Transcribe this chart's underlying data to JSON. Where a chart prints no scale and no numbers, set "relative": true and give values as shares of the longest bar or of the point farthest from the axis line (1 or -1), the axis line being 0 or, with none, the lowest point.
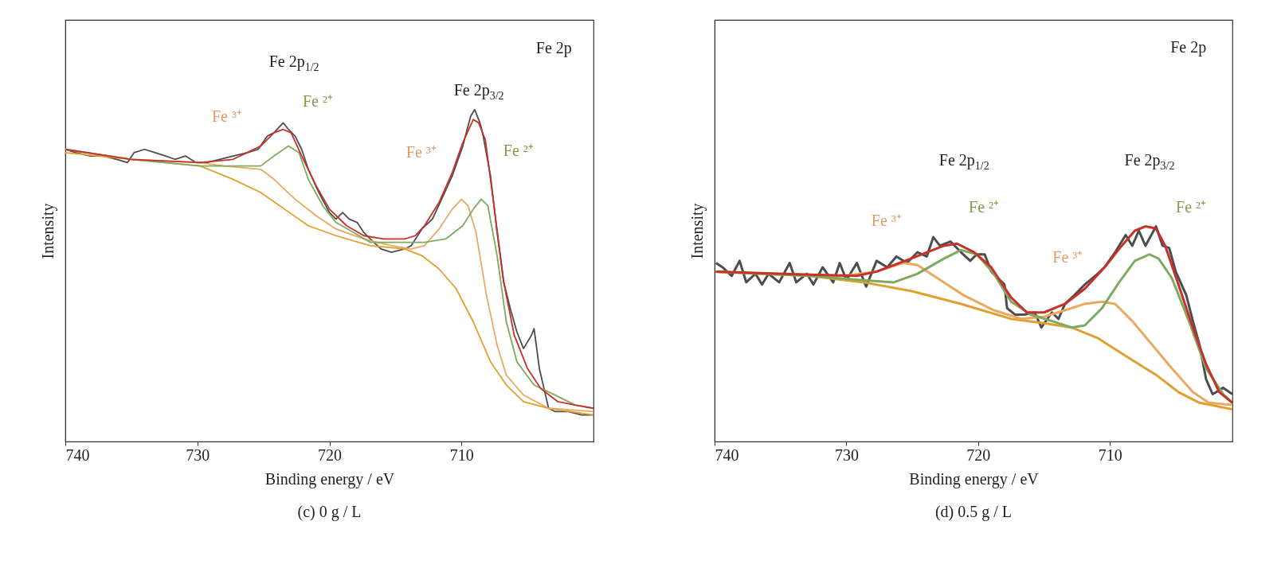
{
  "chart_data": [
    {
      "type": "line",
      "title": "(c) 0 g / L",
      "xlabel": "Binding energy / eV",
      "ylabel": "Intensity",
      "relative": true,
      "xlim": [
        740,
        700
      ],
      "xticks": [
        740,
        730,
        720,
        710
      ],
      "annotations": [
        "Fe 2p",
        "Fe 2p$_{1/2}$",
        "Fe ³⁺",
        "Fe ²⁺",
        "Fe 2p$_{3/2}$",
        "Fe ³⁺",
        "Fe ²⁺"
      ],
      "series": [
        {
          "color": "#4d4d4d",
          "x": [
            740,
            739.2,
            738.1,
            737.1,
            736.1,
            735.3,
            734.8,
            734.0,
            733.2,
            732.4,
            731.7,
            730.9,
            730.1,
            729.3,
            728.3,
            727.3,
            726.2,
            725.4,
            724.7,
            724.2,
            723.5,
            723.1,
            722.6,
            722.1,
            721.6,
            720.8,
            720.0,
            719.5,
            719.0,
            718.5,
            717.9,
            717.4,
            716.9,
            716.1,
            715.3,
            714.3,
            713.8,
            713.0,
            712.2,
            711.5,
            710.7,
            709.9,
            709.3,
            709.0,
            708.6,
            708.4,
            707.8,
            707.3,
            706.8,
            706.3,
            705.8,
            705.3,
            704.7,
            704.5,
            704.1,
            703.4,
            702.9,
            701.9,
            700.9,
            700.0
          ],
          "values": [
            0.88,
            0.87,
            0.86,
            0.86,
            0.85,
            0.84,
            0.87,
            0.88,
            0.87,
            0.86,
            0.85,
            0.86,
            0.84,
            0.84,
            0.85,
            0.86,
            0.87,
            0.88,
            0.92,
            0.93,
            0.96,
            0.94,
            0.92,
            0.88,
            0.82,
            0.75,
            0.69,
            0.67,
            0.69,
            0.67,
            0.66,
            0.63,
            0.61,
            0.58,
            0.57,
            0.58,
            0.59,
            0.64,
            0.67,
            0.73,
            0.8,
            0.89,
            0.98,
            1.0,
            0.96,
            0.93,
            0.8,
            0.63,
            0.48,
            0.4,
            0.33,
            0.28,
            0.32,
            0.34,
            0.22,
            0.1,
            0.09,
            0.09,
            0.08,
            0.08
          ]
        },
        {
          "color": "#e0a030",
          "x": [
            740,
            735.0,
            729.8,
            727.3,
            725.2,
            723.4,
            721.6,
            719.5,
            716.9,
            714.3,
            713.0,
            711.7,
            710.4,
            709.1,
            707.8,
            706.6,
            705.3,
            703.4,
            700.0
          ],
          "values": [
            0.87,
            0.85,
            0.83,
            0.79,
            0.75,
            0.7,
            0.65,
            0.62,
            0.59,
            0.58,
            0.56,
            0.52,
            0.46,
            0.36,
            0.24,
            0.17,
            0.12,
            0.1,
            0.08
          ]
        },
        {
          "color": "#eaa860",
          "x": [
            740,
            735.0,
            729.8,
            728.0,
            725.2,
            724.2,
            722.6,
            721.0,
            719.5,
            717.4,
            715.3,
            713.8,
            712.8,
            711.7,
            710.7,
            710.0,
            709.5,
            708.9,
            708.1,
            707.3,
            706.6,
            705.3,
            703.4,
            700.0
          ],
          "values": [
            0.88,
            0.85,
            0.84,
            0.83,
            0.82,
            0.79,
            0.73,
            0.68,
            0.64,
            0.61,
            0.59,
            0.58,
            0.59,
            0.64,
            0.7,
            0.73,
            0.71,
            0.63,
            0.44,
            0.29,
            0.2,
            0.14,
            0.1,
            0.09
          ]
        },
        {
          "color": "#7daa5c",
          "x": [
            740,
            735.0,
            729.8,
            727.3,
            725.2,
            724.2,
            723.1,
            722.3,
            721.6,
            720.5,
            719.5,
            718.2,
            716.9,
            715.3,
            714.3,
            712.8,
            711.2,
            709.9,
            709.1,
            708.5,
            708.0,
            707.3,
            706.6,
            705.8,
            704.5,
            702.9,
            701.4,
            700.0
          ],
          "values": [
            0.88,
            0.85,
            0.83,
            0.83,
            0.83,
            0.86,
            0.89,
            0.87,
            0.79,
            0.71,
            0.66,
            0.63,
            0.6,
            0.6,
            0.6,
            0.6,
            0.61,
            0.65,
            0.7,
            0.73,
            0.71,
            0.56,
            0.36,
            0.24,
            0.17,
            0.14,
            0.11,
            0.1
          ]
        },
        {
          "color": "#c8302a",
          "x": [
            740,
            735.0,
            729.8,
            727.3,
            725.2,
            724.2,
            723.5,
            722.9,
            722.1,
            721.0,
            720.0,
            718.7,
            717.4,
            715.9,
            714.3,
            713.5,
            712.8,
            711.7,
            710.7,
            709.9,
            709.1,
            708.7,
            708.2,
            707.6,
            706.8,
            706.0,
            705.0,
            704.0,
            702.7,
            701.4,
            700.0
          ],
          "values": [
            0.88,
            0.85,
            0.84,
            0.85,
            0.89,
            0.93,
            0.94,
            0.93,
            0.86,
            0.77,
            0.7,
            0.65,
            0.62,
            0.61,
            0.61,
            0.62,
            0.65,
            0.72,
            0.81,
            0.9,
            0.97,
            0.96,
            0.91,
            0.73,
            0.48,
            0.32,
            0.22,
            0.16,
            0.12,
            0.11,
            0.1
          ]
        }
      ]
    },
    {
      "type": "line",
      "title": "(d) 0.5 g / L",
      "xlabel": "Binding energy / eV",
      "ylabel": "Intensity",
      "relative": true,
      "xlim": [
        740,
        700.7
      ],
      "xticks": [
        740,
        730,
        720,
        710
      ],
      "annotations": [
        "Fe 2p",
        "Fe 2p$_{1/2}$",
        "Fe ³⁺",
        "Fe ²⁺",
        "Fe 2p$_{3/2}$",
        "Fe ³⁺",
        "Fe ²⁺"
      ],
      "series": [
        {
          "color": "#4d4d4d",
          "x": [
            739.9,
            739.4,
            738.7,
            738.1,
            737.6,
            736.9,
            736.4,
            735.9,
            735.1,
            734.3,
            733.8,
            733.0,
            732.5,
            731.8,
            731.0,
            730.5,
            730.0,
            729.2,
            728.5,
            727.7,
            726.9,
            726.2,
            725.4,
            724.6,
            723.9,
            723.4,
            722.9,
            722.1,
            721.3,
            720.6,
            720.1,
            719.5,
            719.0,
            718.5,
            718.0,
            717.8,
            717.2,
            716.5,
            715.7,
            715.2,
            714.4,
            713.9,
            713.4,
            712.7,
            711.9,
            711.1,
            710.4,
            709.6,
            708.8,
            708.3,
            707.8,
            707.3,
            706.5,
            706.0,
            705.5,
            705.0,
            704.2,
            703.7,
            703.2,
            702.7,
            702.2,
            701.4,
            700.7
          ],
          "values": [
            0.83,
            0.81,
            0.77,
            0.84,
            0.74,
            0.78,
            0.73,
            0.78,
            0.74,
            0.83,
            0.74,
            0.78,
            0.73,
            0.81,
            0.74,
            0.83,
            0.75,
            0.83,
            0.72,
            0.84,
            0.81,
            0.86,
            0.83,
            0.88,
            0.86,
            0.95,
            0.91,
            0.93,
            0.88,
            0.84,
            0.87,
            0.87,
            0.79,
            0.76,
            0.73,
            0.62,
            0.59,
            0.59,
            0.6,
            0.53,
            0.6,
            0.57,
            0.64,
            0.68,
            0.73,
            0.77,
            0.81,
            0.88,
            0.96,
            0.91,
            0.98,
            0.91,
            1.0,
            0.91,
            0.9,
            0.79,
            0.68,
            0.56,
            0.45,
            0.29,
            0.22,
            0.25,
            0.22
          ]
        },
        {
          "color": "#e0a030",
          "x": [
            739.9,
            732.8,
            728.7,
            725.1,
            721.3,
            717.5,
            715.0,
            712.9,
            710.9,
            708.6,
            706.5,
            704.8,
            703.2,
            700.7
          ],
          "values": [
            0.79,
            0.77,
            0.74,
            0.7,
            0.64,
            0.57,
            0.55,
            0.53,
            0.48,
            0.39,
            0.31,
            0.23,
            0.18,
            0.15
          ]
        },
        {
          "color": "#eaa860",
          "x": [
            739.9,
            730.2,
            727.7,
            725.7,
            724.6,
            723.1,
            721.1,
            718.8,
            716.7,
            715.0,
            713.4,
            711.9,
            710.6,
            709.6,
            708.3,
            706.8,
            705.3,
            703.7,
            702.5,
            700.7
          ],
          "values": [
            0.79,
            0.77,
            0.79,
            0.83,
            0.82,
            0.76,
            0.68,
            0.61,
            0.57,
            0.58,
            0.61,
            0.64,
            0.65,
            0.64,
            0.56,
            0.45,
            0.34,
            0.23,
            0.18,
            0.17
          ]
        },
        {
          "color": "#7daa5c",
          "x": [
            739.9,
            732.8,
            728.7,
            726.4,
            724.6,
            722.6,
            721.3,
            720.1,
            718.8,
            717.5,
            716.0,
            714.4,
            712.9,
            711.9,
            710.6,
            709.3,
            708.1,
            707.0,
            706.3,
            705.3,
            704.0,
            702.7,
            701.4,
            700.7
          ],
          "values": [
            0.79,
            0.77,
            0.75,
            0.74,
            0.78,
            0.85,
            0.89,
            0.87,
            0.78,
            0.65,
            0.59,
            0.56,
            0.53,
            0.54,
            0.62,
            0.74,
            0.84,
            0.87,
            0.85,
            0.76,
            0.56,
            0.34,
            0.22,
            0.18
          ]
        },
        {
          "color": "#c8302a",
          "x": [
            739.9,
            735.3,
            729.2,
            727.7,
            725.1,
            722.6,
            721.6,
            720.3,
            719.0,
            717.5,
            716.3,
            715.0,
            713.4,
            711.9,
            710.4,
            709.1,
            708.1,
            707.3,
            706.5,
            705.8,
            704.8,
            703.7,
            702.7,
            701.7,
            700.7
          ],
          "values": [
            0.79,
            0.78,
            0.77,
            0.79,
            0.85,
            0.91,
            0.92,
            0.88,
            0.81,
            0.67,
            0.6,
            0.6,
            0.64,
            0.71,
            0.81,
            0.91,
            0.98,
            1.0,
            0.99,
            0.91,
            0.73,
            0.53,
            0.36,
            0.23,
            0.18
          ]
        }
      ]
    }
  ]
}
